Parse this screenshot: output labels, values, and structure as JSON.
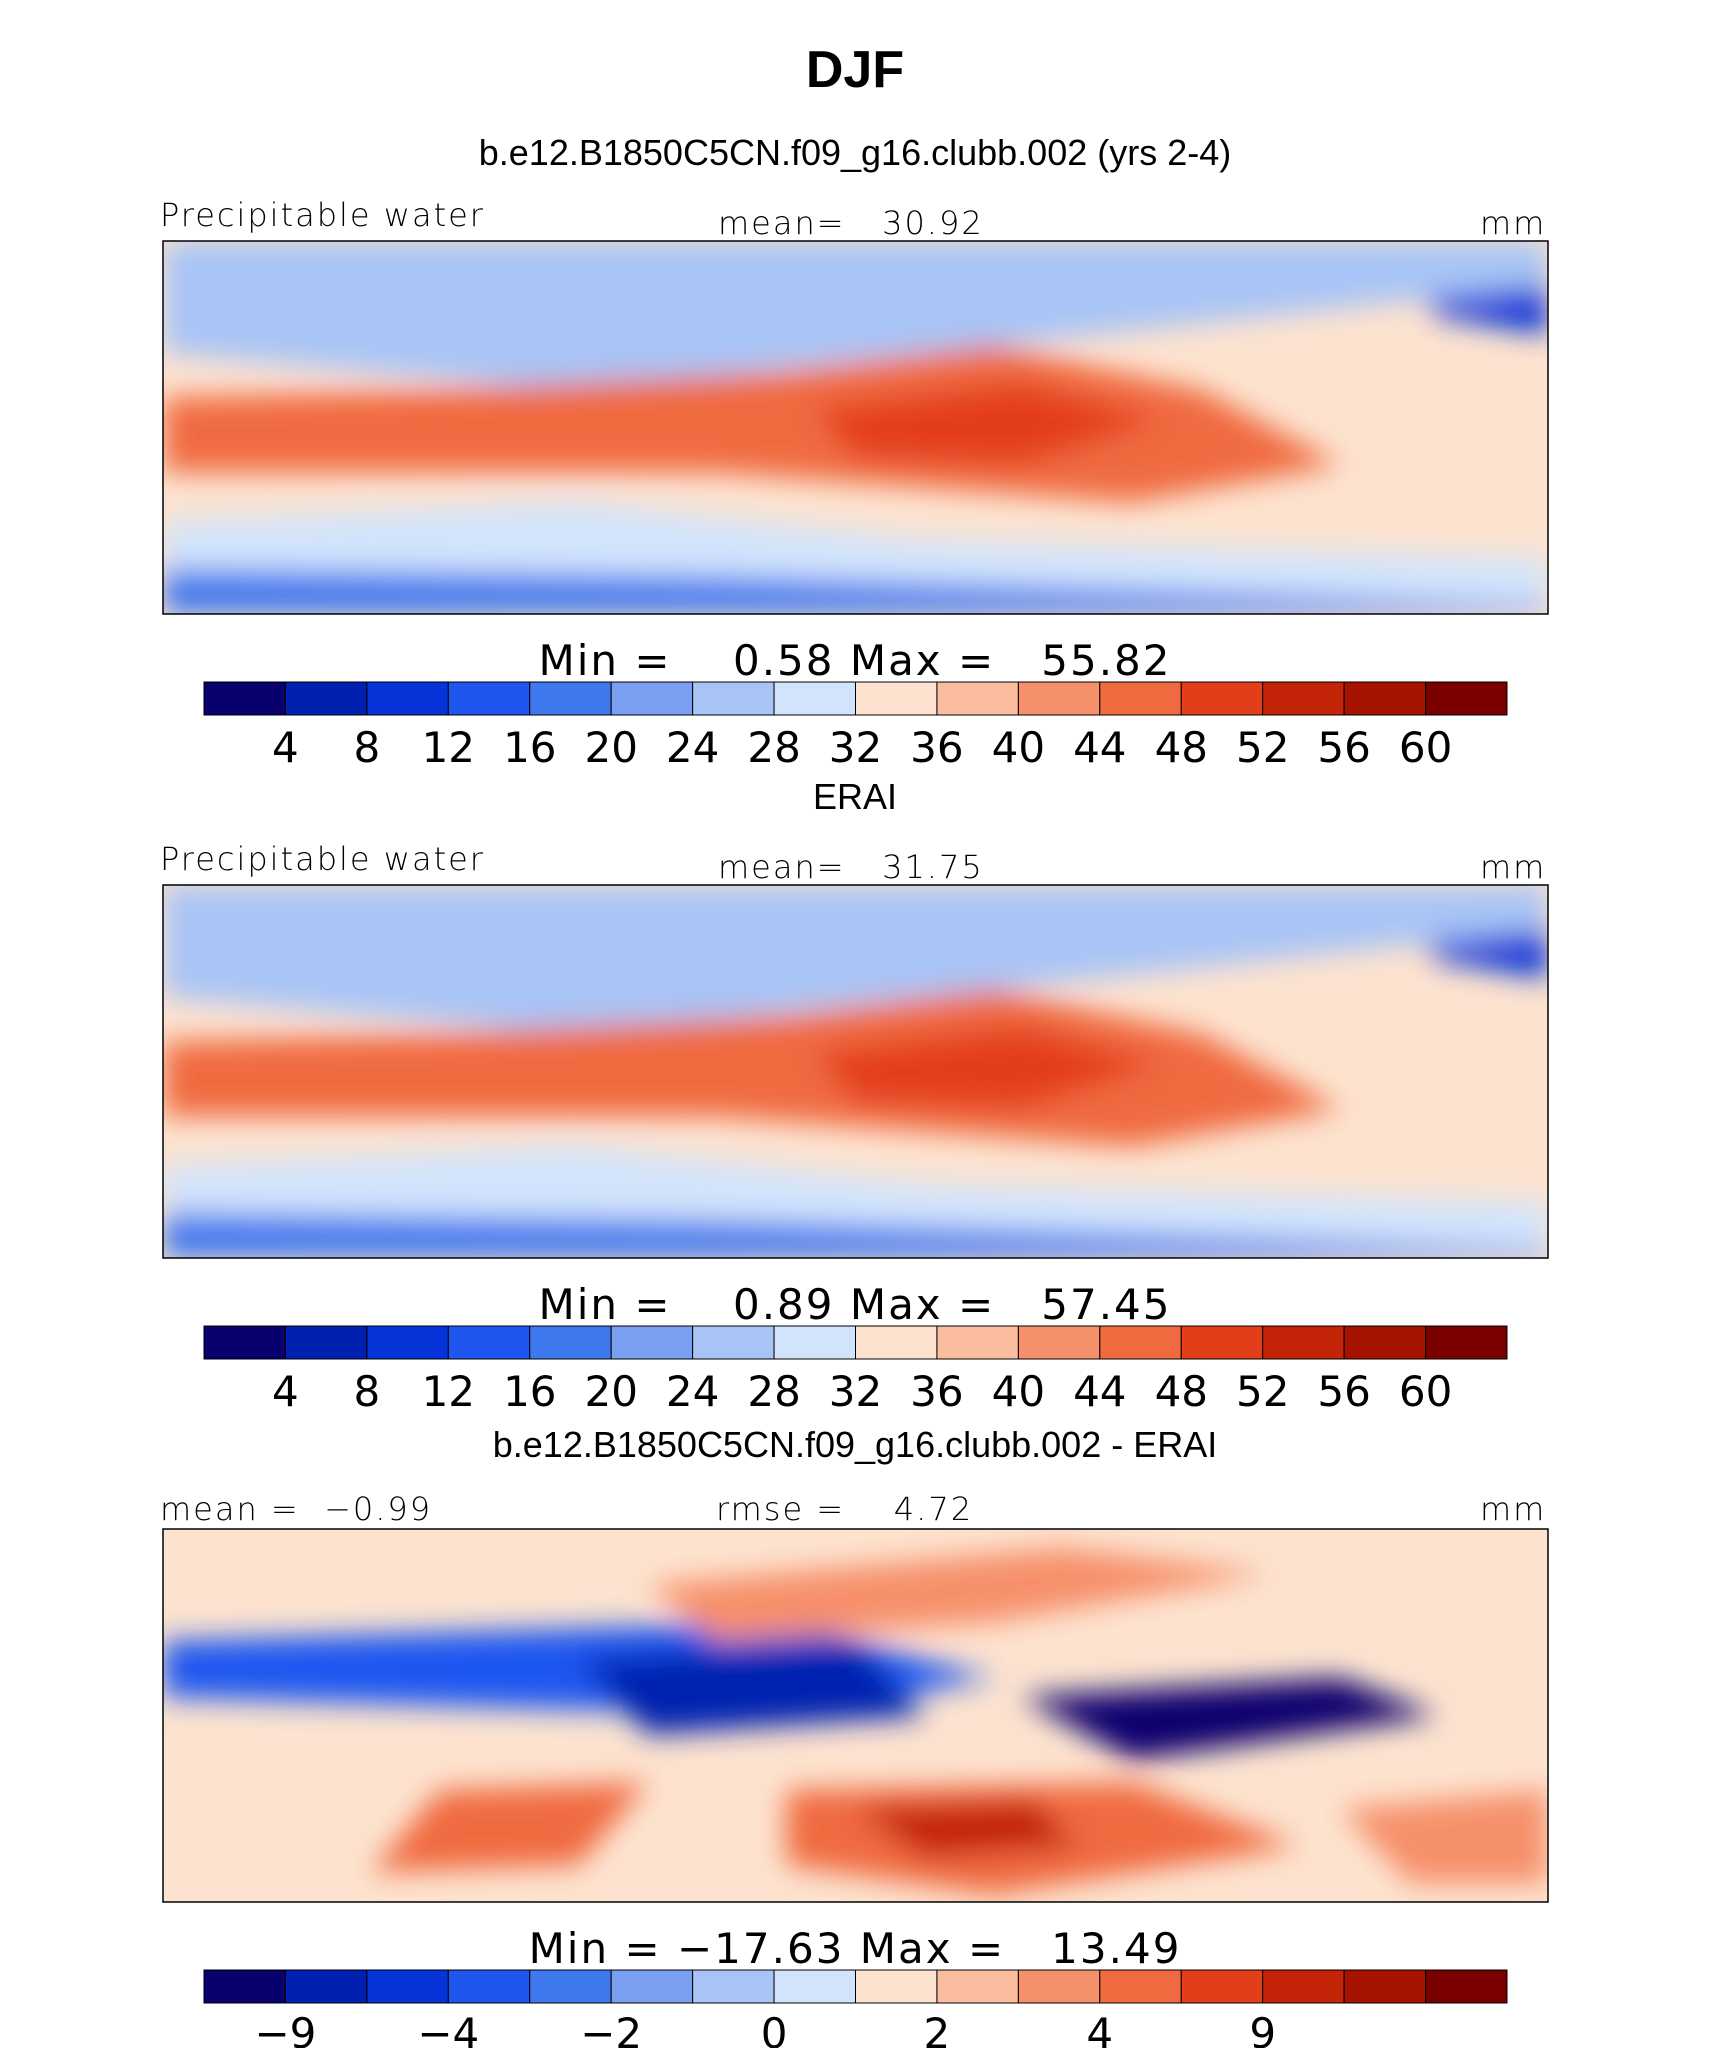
{
  "title": "DJF",
  "colors": {
    "cb12": [
      "#08006e",
      "#0020b0",
      "#0535d8",
      "#1f56f0",
      "#3d78ee",
      "#7b9ff0",
      "#a8c4f6",
      "#d2e4fc",
      "#fde3cf",
      "#fbbd9f",
      "#f6906b",
      "#f06a40",
      "#e33e1a",
      "#c32306",
      "#a51200",
      "#7a0000"
    ],
    "cb13": [
      "#08006e",
      "#0020b0",
      "#0535d8",
      "#1f56f0",
      "#3d78ee",
      "#7b9ff0",
      "#a8c4f6",
      "#d2e4fc",
      "#fde3cf",
      "#fbbd9f",
      "#f6906b",
      "#f06a40",
      "#e33e1a",
      "#c32306",
      "#a51200",
      "#7a0000"
    ]
  },
  "panels": [
    {
      "title": "b.e12.B1850C5CN.f09_g16.clubb.002 (yrs 2-4)",
      "left_label": "Precipitable water",
      "center_label": "mean=   30.92",
      "units": "mm",
      "minmax": "Min =    0.58 Max =   55.82"
    },
    {
      "title": "ERAI",
      "left_label": "Precipitable water",
      "center_label": "mean=   31.75",
      "units": "mm",
      "minmax": "Min =    0.89 Max =   57.45"
    },
    {
      "title": "b.e12.B1850C5CN.f09_g16.clubb.002 - ERAI",
      "left_label": "mean =  −0.99",
      "center_label": "rmse =    4.72",
      "units": "mm",
      "minmax": "Min = −17.63 Max =   13.49"
    }
  ],
  "chart_data": [
    {
      "type": "heatmap",
      "title": "b.e12.B1850C5CN.f09_g16.clubb.002 (yrs 2-4)",
      "variable": "Precipitable water",
      "units": "mm",
      "mean": 30.92,
      "min": 0.58,
      "max": 55.82,
      "colorbar_levels": [
        4,
        8,
        12,
        16,
        20,
        24,
        28,
        32,
        36,
        40,
        44,
        48,
        52,
        56,
        60
      ],
      "colorbar_tick_labels": [
        "4",
        "8",
        "12",
        "16",
        "20",
        "24",
        "28",
        "32",
        "36",
        "40",
        "44",
        "48",
        "52",
        "56",
        "60"
      ]
    },
    {
      "type": "heatmap",
      "title": "ERAI",
      "variable": "Precipitable water",
      "units": "mm",
      "mean": 31.75,
      "min": 0.89,
      "max": 57.45,
      "colorbar_levels": [
        4,
        8,
        12,
        16,
        20,
        24,
        28,
        32,
        36,
        40,
        44,
        48,
        52,
        56,
        60
      ],
      "colorbar_tick_labels": [
        "4",
        "8",
        "12",
        "16",
        "20",
        "24",
        "28",
        "32",
        "36",
        "40",
        "44",
        "48",
        "52",
        "56",
        "60"
      ]
    },
    {
      "type": "heatmap",
      "title": "b.e12.B1850C5CN.f09_g16.clubb.002 - ERAI",
      "units": "mm",
      "mean": -0.99,
      "rmse": 4.72,
      "min": -17.63,
      "max": 13.49,
      "colorbar_levels": [
        -9,
        -6,
        -4,
        -3,
        -2,
        -1,
        0,
        1,
        2,
        3,
        4,
        6,
        9
      ],
      "colorbar_tick_labels": [
        "−9",
        "−4",
        "−2",
        "0",
        "2",
        "4",
        "9"
      ]
    }
  ]
}
